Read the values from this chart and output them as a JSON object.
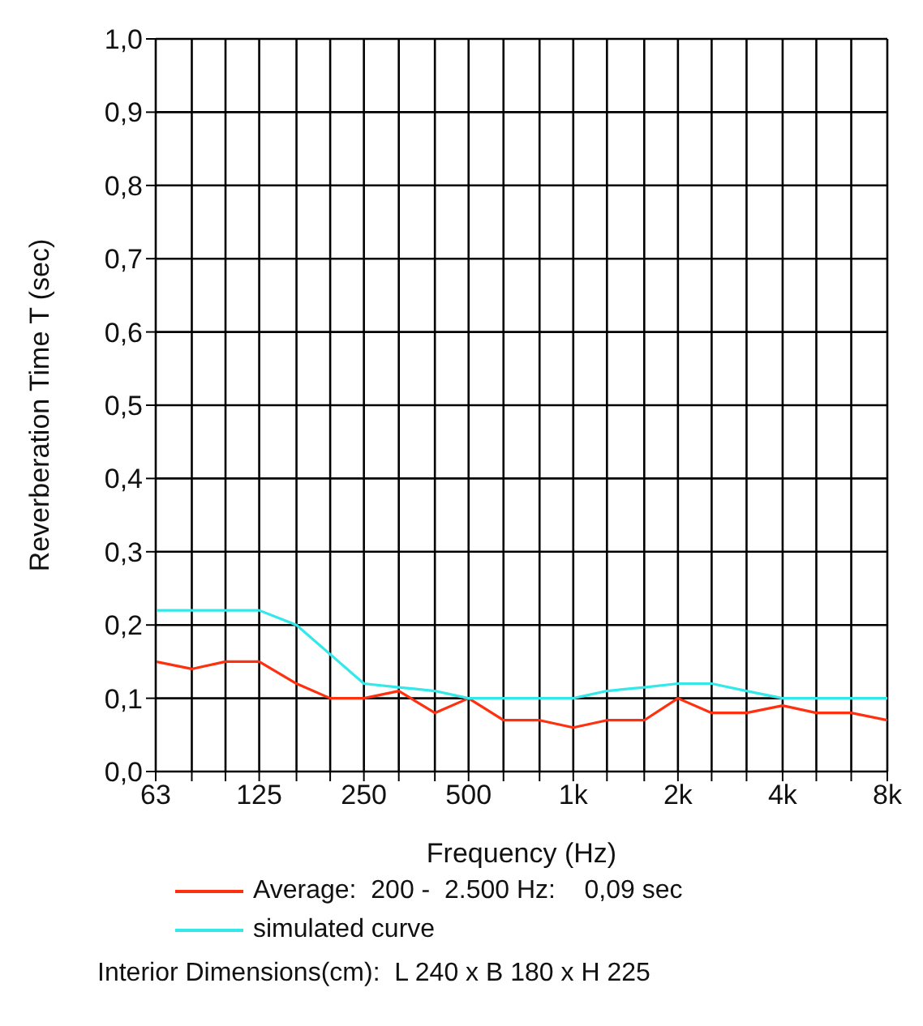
{
  "chart_data": {
    "type": "line",
    "xlabel": "Frequency (Hz)",
    "ylabel": "Reverberation Time  T (sec)",
    "x": [
      63,
      80,
      100,
      125,
      160,
      200,
      250,
      315,
      400,
      500,
      630,
      800,
      1000,
      1250,
      1600,
      2000,
      2500,
      3150,
      4000,
      5000,
      6300,
      8000
    ],
    "series": [
      {
        "name": "Average:  200 -  2.500 Hz:    0,09 sec",
        "color": "#ff3010",
        "values": [
          0.15,
          0.14,
          0.15,
          0.15,
          0.12,
          0.1,
          0.1,
          0.11,
          0.08,
          0.1,
          0.07,
          0.07,
          0.06,
          0.07,
          0.07,
          0.1,
          0.08,
          0.08,
          0.09,
          0.08,
          0.08,
          0.07
        ]
      },
      {
        "name": "simulated curve",
        "color": "#33e8e8",
        "values": [
          0.22,
          0.22,
          0.22,
          0.22,
          0.2,
          0.16,
          0.12,
          0.115,
          0.11,
          0.1,
          0.1,
          0.1,
          0.1,
          0.11,
          0.115,
          0.12,
          0.12,
          0.11,
          0.1,
          0.1,
          0.1,
          0.1
        ]
      }
    ],
    "xlim": [
      63,
      8000
    ],
    "xticks": [
      63,
      {
        "value": 80,
        "label": null
      },
      {
        "value": 100,
        "label": null
      },
      125,
      {
        "value": 160,
        "label": null
      },
      {
        "value": 200,
        "label": null
      },
      250,
      {
        "value": 315,
        "label": null
      },
      {
        "value": 400,
        "label": null
      },
      500,
      {
        "value": 630,
        "label": null
      },
      {
        "value": 800,
        "label": null
      },
      {
        "value": 1000,
        "label": "1k"
      },
      {
        "value": 1250,
        "label": null
      },
      {
        "value": 1600,
        "label": null
      },
      {
        "value": 2000,
        "label": "2k"
      },
      {
        "value": 2500,
        "label": null
      },
      {
        "value": 3150,
        "label": null
      },
      {
        "value": 4000,
        "label": "4k"
      },
      {
        "value": 5000,
        "label": null
      },
      {
        "value": 6300,
        "label": null
      },
      {
        "value": 8000,
        "label": "8k"
      }
    ],
    "ylim": [
      0,
      1
    ],
    "yticks": [
      {
        "value": 0,
        "label": "0,0"
      },
      {
        "value": 0.1,
        "label": "0,1"
      },
      {
        "value": 0.2,
        "label": "0,2"
      },
      {
        "value": 0.3,
        "label": "0,3"
      },
      {
        "value": 0.4,
        "label": "0,4"
      },
      {
        "value": 0.5,
        "label": "0,5"
      },
      {
        "value": 0.6,
        "label": "0,6"
      },
      {
        "value": 0.7,
        "label": "0,7"
      },
      {
        "value": 0.8,
        "label": "0,8"
      },
      {
        "value": 0.9,
        "label": "0,9"
      },
      {
        "value": 1,
        "label": "1,0"
      }
    ],
    "log": "x",
    "grid": true,
    "legend": "bottom",
    "marker": "none",
    "line_style": "solid",
    "annotations": [
      "Interior Dimensions(cm):  L 240 x B 180 x H 225"
    ]
  }
}
